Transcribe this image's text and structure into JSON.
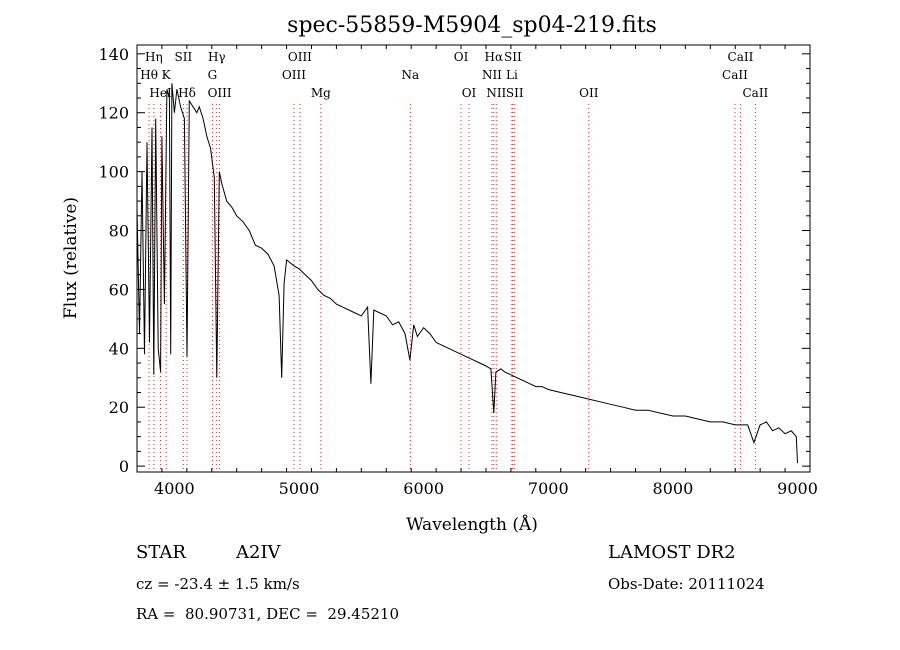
{
  "chart_data": {
    "type": "line",
    "title": "spec-55859-M5904_sp04-219.fits",
    "xlabel": "Wavelength (Å)",
    "ylabel": "Flux (relative)",
    "xlim": [
      3700,
      9100
    ],
    "ylim": [
      -2,
      143
    ],
    "xticks": [
      4000,
      5000,
      6000,
      7000,
      8000,
      9000
    ],
    "yticks": [
      0,
      20,
      40,
      60,
      80,
      100,
      120,
      140
    ],
    "grid": false,
    "series": [
      {
        "x": [
          3700,
          3720,
          3740,
          3760,
          3780,
          3800,
          3820,
          3835,
          3850,
          3870,
          3889,
          3900,
          3920,
          3940,
          3960,
          3970,
          3980,
          4000,
          4020,
          4050,
          4080,
          4101,
          4120,
          4150,
          4180,
          4200,
          4230,
          4260,
          4290,
          4320,
          4340,
          4360,
          4380,
          4420,
          4460,
          4500,
          4550,
          4600,
          4650,
          4700,
          4750,
          4800,
          4840,
          4861,
          4880,
          4900,
          4930,
          4960,
          5000,
          5050,
          5100,
          5150,
          5200,
          5250,
          5300,
          5350,
          5400,
          5450,
          5500,
          5550,
          5577,
          5600,
          5650,
          5700,
          5750,
          5800,
          5850,
          5890,
          5920,
          5950,
          6000,
          6050,
          6100,
          6150,
          6200,
          6250,
          6300,
          6350,
          6400,
          6450,
          6500,
          6540,
          6563,
          6580,
          6620,
          6650,
          6700,
          6750,
          6800,
          6850,
          6900,
          6950,
          7000,
          7100,
          7200,
          7300,
          7400,
          7500,
          7600,
          7700,
          7800,
          7900,
          8000,
          8100,
          8200,
          8300,
          8400,
          8500,
          8600,
          8650,
          8700,
          8750,
          8800,
          8850,
          8900,
          8950,
          8990,
          9000
        ],
        "y": [
          88,
          45,
          100,
          38,
          110,
          42,
          115,
          31,
          118,
          40,
          32,
          112,
          55,
          128,
          125,
          38,
          130,
          120,
          128,
          122,
          118,
          37,
          124,
          122,
          120,
          122,
          118,
          112,
          108,
          98,
          30,
          100,
          96,
          90,
          88,
          85,
          83,
          80,
          75,
          74,
          72,
          68,
          58,
          30,
          62,
          70,
          69,
          68,
          67,
          65,
          63,
          60,
          58,
          57,
          55,
          54,
          53,
          52,
          51,
          54,
          28,
          53,
          52,
          51,
          48,
          49,
          45,
          36,
          48,
          44,
          47,
          45,
          42,
          41,
          40,
          39,
          38,
          37,
          36,
          35,
          34,
          33,
          18,
          32,
          33,
          32,
          31,
          30,
          29,
          28,
          27,
          27,
          26,
          25,
          24,
          23,
          22,
          21,
          20,
          19,
          19,
          18,
          17,
          17,
          16,
          15,
          15,
          14,
          14,
          8,
          14,
          15,
          12,
          13,
          11,
          12,
          10,
          1
        ]
      }
    ],
    "line_markers": [
      {
        "label": "Hη",
        "wl": 3835,
        "row": 0
      },
      {
        "label": "Hθ",
        "wl": 3797,
        "row": 1
      },
      {
        "label": "K",
        "wl": 3934,
        "row": 1
      },
      {
        "label": "HeI",
        "wl": 3889,
        "row": 2
      },
      {
        "label": "SII",
        "wl": 4072,
        "row": 0
      },
      {
        "label": "Hδ",
        "wl": 4101,
        "row": 2
      },
      {
        "label": "Hγ",
        "wl": 4340,
        "row": 0
      },
      {
        "label": "G",
        "wl": 4305,
        "row": 1
      },
      {
        "label": "OIII",
        "wl": 4363,
        "row": 2
      },
      {
        "label": "OIII",
        "wl": 5007,
        "row": 0
      },
      {
        "label": "OIII",
        "wl": 4959,
        "row": 1
      },
      {
        "label": "Mg",
        "wl": 5175,
        "row": 2
      },
      {
        "label": "Na",
        "wl": 5893,
        "row": 1
      },
      {
        "label": "OI",
        "wl": 6300,
        "row": 0
      },
      {
        "label": "OI",
        "wl": 6364,
        "row": 2
      },
      {
        "label": "Hα",
        "wl": 6563,
        "row": 0
      },
      {
        "label": "SII",
        "wl": 6716,
        "row": 0
      },
      {
        "label": "NII",
        "wl": 6548,
        "row": 1
      },
      {
        "label": "Li",
        "wl": 6708,
        "row": 1
      },
      {
        "label": "NII",
        "wl": 6583,
        "row": 2
      },
      {
        "label": "SII",
        "wl": 6731,
        "row": 2
      },
      {
        "label": "OII",
        "wl": 7325,
        "row": 2
      },
      {
        "label": "CaII",
        "wl": 8542,
        "row": 0
      },
      {
        "label": "CaII",
        "wl": 8498,
        "row": 1
      },
      {
        "label": "CaII",
        "wl": 8662,
        "row": 2
      }
    ]
  },
  "info": {
    "star_class": "STAR",
    "subclass": "A2IV",
    "survey": "LAMOST DR2",
    "cz": "cz = -23.4 ± 1.5 km/s",
    "obs_date": "Obs-Date: 20111024",
    "coords": "RA =  80.90731, DEC =  29.45210"
  }
}
